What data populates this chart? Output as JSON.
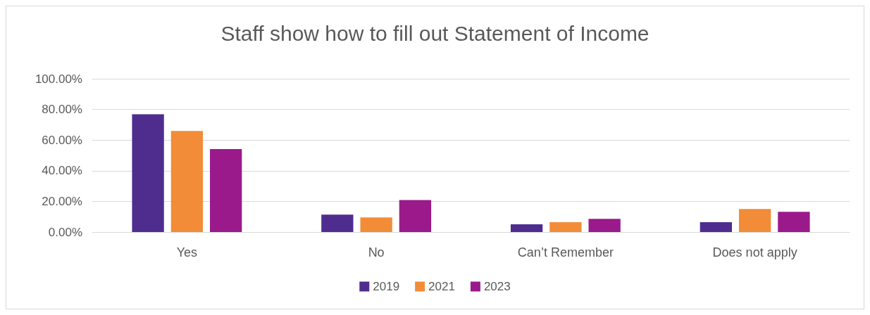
{
  "chart_data": {
    "type": "bar",
    "title": "Staff show how to fill out Statement of Income",
    "categories": [
      "Yes",
      "No",
      "Can’t Remember",
      "Does not apply"
    ],
    "series": [
      {
        "name": "2019",
        "color": "#4f2d8f",
        "values": [
          76.8,
          11.4,
          5.0,
          6.4
        ]
      },
      {
        "name": "2021",
        "color": "#f28c38",
        "values": [
          65.9,
          9.5,
          6.4,
          15.0
        ]
      },
      {
        "name": "2023",
        "color": "#9a1a8c",
        "values": [
          54.1,
          20.9,
          8.6,
          13.2
        ]
      }
    ],
    "ylim": [
      0,
      100
    ],
    "yticks": [
      {
        "value": 0,
        "label": "0.00%"
      },
      {
        "value": 20,
        "label": "20.00%"
      },
      {
        "value": 40,
        "label": "40.00%"
      },
      {
        "value": 60,
        "label": "60.00%"
      },
      {
        "value": 80,
        "label": "80.00%"
      },
      {
        "value": 100,
        "label": "100.00%"
      }
    ],
    "grid": "y",
    "legend": "bottom"
  }
}
